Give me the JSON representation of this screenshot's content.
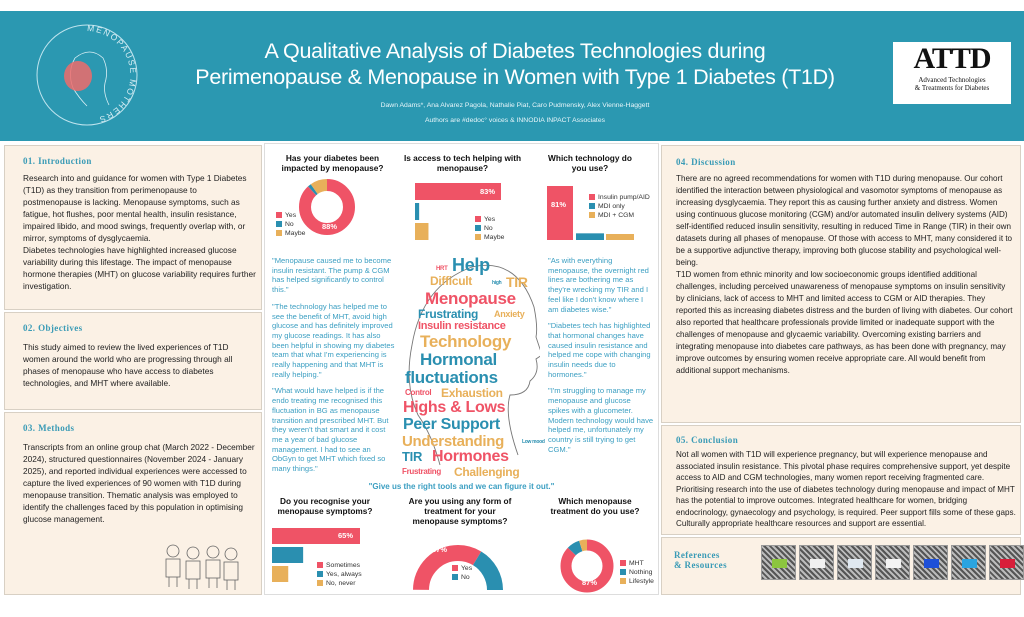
{
  "header": {
    "title_line1": "A Qualitative Analysis of Diabetes Technologies during",
    "title_line2": "Perimenopause & Menopause in Women with Type 1 Diabetes (T1D)",
    "authors": "Dawn Adams*, Ana Alvarez Pagola, Nathalie Piat, Caro Pudmensky, Alex Vienne-Haggett",
    "affiliation": "Authors are #dedoc° voices & INNODIA INPACT Associates",
    "left_logo_text": "MENOPAUSE MOTHERS",
    "right_logo": {
      "mark": "ATTD",
      "line1": "Advanced Technologies",
      "line2": "& Treatments for Diabetes"
    }
  },
  "sections": {
    "intro": {
      "heading": "01. Introduction",
      "text": "Research into and guidance for women with Type 1 Diabetes (T1D) as they transition from perimenopause to postmenopause is lacking. Menopause symptoms, such as fatigue, hot flushes, poor mental health, insulin resistance, impaired libido, and mood swings, frequently overlap with, or mirror, symptoms of dysglycaemia.",
      "text2": "Diabetes technologies have highlighted increased glucose variability during this lifestage. The impact of menopause hormone therapies (MHT) on glucose variability requires further investigation."
    },
    "objectives": {
      "heading": "02. Objectives",
      "text": "This study aimed to review the lived experiences of T1D women around the world who are progressing through all phases of menopause who have access to diabetes technologies, and MHT where available."
    },
    "methods": {
      "heading": "03. Methods",
      "text": "Transcripts from an online group chat (March 2022 - December 2024), structured questionnaires (November 2024 - January 2025), and reported individual experiences were accessed to capture the lived experiences of 90 women with T1D during menopause transition. Thematic analysis was employed to identify the challenges faced by this population in optimising glucose management."
    },
    "discussion": {
      "heading": "04. Discussion",
      "text": "There are no agreed recommendations for women with T1D during menopause. Our cohort identified the interaction between physiological and vasomotor symptoms of menopause as increasing dysglycaemia. They report this as causing further anxiety and distress. Women using continuous glucose monitoring (CGM) and/or automated insulin delivery systems (AID) self-identified reduced insulin sensitivity, resulting in reduced Time in Range (TIR) in their own datasets during all phases of menopause. Of those with access to MHT, many considered it to be a supportive adjunctive therapy, improving both glucose stability and psychological well-being.",
      "text2": "T1D women from ethnic minority and low socioeconomic groups identified additional challenges, including perceived unawareness of menopause symptoms on insulin sensitivity by clinicians, lack of access to MHT and limited access to CGM or AID therapies. They reported this as increasing diabetes distress and the burden of living with diabetes. Our cohort also reported that healthcare professionals provide limited or inadequate support with the challenges of menopause and glycaemic variability. Overcoming existing barriers and integrating menopause into diabetes care pathways, as has been done with pregnancy, may improve outcomes by ensuring women receive appropriate care. All would benefit from additional support mechanisms."
    },
    "conclusion": {
      "heading": "05. Conclusion",
      "text": "Not all women with T1D will experience pregnancy, but will experience menopause and associated insulin resistance. This pivotal phase requires comprehensive support, yet despite access to AID and CGM technologies, many women report receiving fragmented care. Prioritising research into the use of diabetes technology during menopause and impact of MHT has the potential to improve outcomes. Integrated healthcare for women, bridging endocrinology, gynaecology and psychology, is required. Peer support fills some of these gaps. Culturally appropriate healthcare resources and support are essential."
    },
    "references": {
      "heading_line1": "References",
      "heading_line2": "& Resources",
      "qr_badge_colors": [
        "#8cc63f",
        "#f0f0f0",
        "#e0e8f0",
        "#f4f4f4",
        "#1d4fd8",
        "#2aa4e0",
        "#d81e3a"
      ]
    }
  },
  "quotes": {
    "left": [
      "\"Menopause caused me to become insulin resistant. The pump & CGM has helped significantly to control this.\"",
      "\"The technology has helped me to see the benefit of MHT, avoid high glucose and has definitely improved my glucose readings. It has also been helpful in showing my diabetes team that what I'm experiencing is really happening and that MHT is really helping.\"",
      "\"What would have helped is if the endo treating me recognised this fluctuation in BG as menopause transition and prescribed MHT. But they weren't that smart and it cost me a year of bad glucose management. I had to see an ObGyn to get MHT which fixed so many things.\""
    ],
    "right": [
      "\"As with everything menopause, the overnight red lines are bothering me as they're wrecking my TIR and I feel like I don't know where I am diabetes wise.\"",
      "\"Diabetes tech has highlighted that hormonal changes have caused insulin resistance and helped me cope with changing insulin needs due to hormones.\"",
      "\"I'm struggling to manage my menopause and glucose spikes with a glucometer. Modern technology would have helped me, unfortunately my country is still trying to get CGM.\""
    ],
    "center": "\"Give us the right tools and we can figure it out.\""
  },
  "word_cloud": [
    {
      "text": "HRT",
      "color": "#ef5366"
    },
    {
      "text": "Help",
      "color": "#2a8fb0"
    },
    {
      "text": "Difficult",
      "color": "#e8b05a"
    },
    {
      "text": "high",
      "color": "#2a8fb0"
    },
    {
      "text": "TIR",
      "color": "#e8b05a"
    },
    {
      "text": "Menopause",
      "color": "#ef5366"
    },
    {
      "text": "Frustrating",
      "color": "#2a8fb0"
    },
    {
      "text": "Anxiety",
      "color": "#e8b05a"
    },
    {
      "text": "Insulin resistance",
      "color": "#ef5366"
    },
    {
      "text": "Technology",
      "color": "#e8b05a"
    },
    {
      "text": "Hormonal",
      "color": "#2a8fb0"
    },
    {
      "text": "fluctuations",
      "color": "#2a8fb0"
    },
    {
      "text": "Control",
      "color": "#ef5366"
    },
    {
      "text": "Exhaustion",
      "color": "#e8b05a"
    },
    {
      "text": "Highs & Lows",
      "color": "#ef5366"
    },
    {
      "text": "Peer Support",
      "color": "#2a8fb0"
    },
    {
      "text": "Understanding",
      "color": "#e8b05a"
    },
    {
      "text": "Low mood",
      "color": "#2a8fb0"
    },
    {
      "text": "TIR",
      "color": "#2a8fb0"
    },
    {
      "text": "Hormones",
      "color": "#ef5366"
    },
    {
      "text": "Frustrating",
      "color": "#ef5366"
    },
    {
      "text": "Challenging",
      "color": "#e8b05a"
    }
  ],
  "colors": {
    "pink": "#ef5366",
    "blue": "#2a8fb0",
    "orange": "#e8b05a",
    "header": "#2b98b1"
  },
  "chart_data": [
    {
      "type": "pie",
      "style": "donut",
      "title": "Has your diabetes been impacted by menopause?",
      "categories": [
        "Yes",
        "No",
        "Maybe"
      ],
      "values": [
        88,
        2,
        10
      ],
      "data_label": "88%"
    },
    {
      "type": "bar",
      "orientation": "horizontal",
      "title": "Is access to tech helping with menopause?",
      "categories": [
        "Yes",
        "No",
        "Maybe"
      ],
      "values": [
        83,
        4,
        13
      ],
      "data_label": "83%"
    },
    {
      "type": "bar",
      "orientation": "vertical",
      "title": "Which technology do you use?",
      "categories": [
        "Insulin pump/AID",
        "MDI only",
        "MDI + CGM"
      ],
      "values": [
        81,
        10,
        9
      ],
      "data_label": "81%"
    },
    {
      "type": "bar",
      "orientation": "horizontal",
      "title": "Do you recognise your menopause symptoms?",
      "categories": [
        "Sometimes",
        "Yes, always",
        "No, never"
      ],
      "values": [
        65,
        23,
        12
      ],
      "data_label": "65%"
    },
    {
      "type": "pie",
      "style": "semicircle",
      "title": "Are you using any form of treatment for your menopause symptoms?",
      "categories": [
        "Yes",
        "No"
      ],
      "values": [
        67,
        33
      ],
      "data_label": "67%"
    },
    {
      "type": "pie",
      "style": "donut",
      "title": "Which menopause treatment do you use?",
      "categories": [
        "MHT",
        "Nothing",
        "Lifestyle"
      ],
      "values": [
        87,
        8,
        5
      ],
      "data_label": "87%"
    }
  ]
}
